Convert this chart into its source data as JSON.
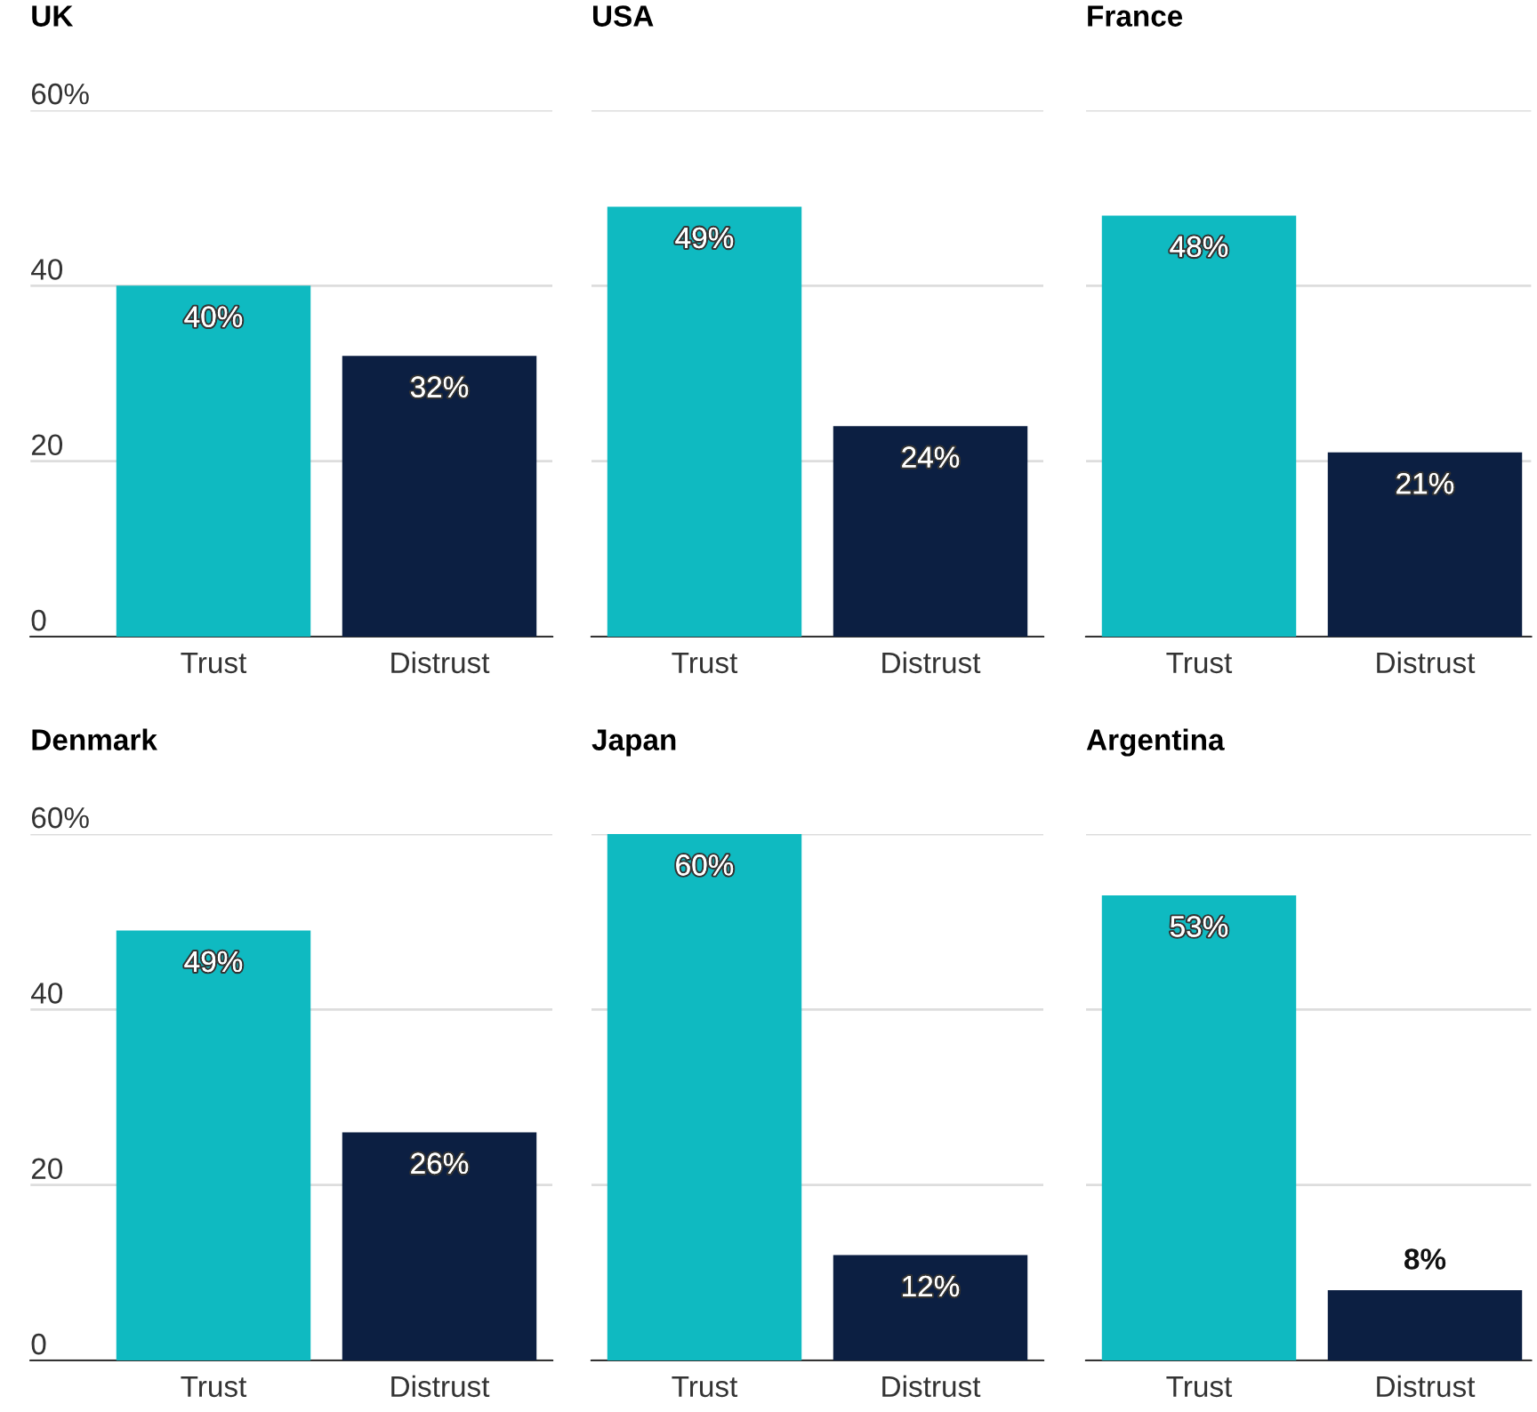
{
  "chart_data": [
    {
      "type": "bar",
      "title": "UK",
      "categories": [
        "Trust",
        "Distrust"
      ],
      "values": [
        40,
        32
      ],
      "colors": [
        "#0fbac1",
        "#0c1f42"
      ],
      "value_labels": [
        "40%",
        "32%"
      ],
      "ylim": [
        0,
        60
      ],
      "yticks": [
        0,
        20,
        40,
        {
          "value": 60,
          "label": "60%"
        }
      ],
      "grid": "y"
    },
    {
      "type": "bar",
      "title": "USA",
      "categories": [
        "Trust",
        "Distrust"
      ],
      "values": [
        49,
        24
      ],
      "colors": [
        "#0fbac1",
        "#0c1f42"
      ],
      "value_labels": [
        "49%",
        "24%"
      ],
      "ylim": [
        0,
        60
      ],
      "yticks": [
        0,
        20,
        40,
        60
      ],
      "grid": "y",
      "tick_labels": "x"
    },
    {
      "type": "bar",
      "title": "France",
      "categories": [
        "Trust",
        "Distrust"
      ],
      "values": [
        48,
        21
      ],
      "colors": [
        "#0fbac1",
        "#0c1f42"
      ],
      "value_labels": [
        "48%",
        "21%"
      ],
      "ylim": [
        0,
        60
      ],
      "yticks": [
        0,
        20,
        40,
        60
      ],
      "grid": "y",
      "tick_labels": "x"
    },
    {
      "type": "bar",
      "title": "Denmark",
      "categories": [
        "Trust",
        "Distrust"
      ],
      "values": [
        49,
        26
      ],
      "colors": [
        "#0fbac1",
        "#0c1f42"
      ],
      "value_labels": [
        "49%",
        "26%"
      ],
      "ylim": [
        0,
        60
      ],
      "yticks": [
        0,
        20,
        40,
        {
          "value": 60,
          "label": "60%"
        }
      ],
      "grid": "y"
    },
    {
      "type": "bar",
      "title": "Japan",
      "categories": [
        "Trust",
        "Distrust"
      ],
      "values": [
        60,
        12
      ],
      "colors": [
        "#0fbac1",
        "#0c1f42"
      ],
      "value_labels": [
        "60%",
        "12%"
      ],
      "ylim": [
        0,
        60
      ],
      "yticks": [
        0,
        20,
        40,
        60
      ],
      "grid": "y",
      "tick_labels": "x"
    },
    {
      "type": "bar",
      "title": "Argentina",
      "categories": [
        "Trust",
        "Distrust"
      ],
      "values": [
        53,
        8
      ],
      "colors": [
        "#0fbac1",
        "#0c1f42"
      ],
      "value_labels": [
        "53%",
        "8%"
      ],
      "ylim": [
        0,
        60
      ],
      "yticks": [
        0,
        20,
        40,
        60
      ],
      "grid": "y",
      "tick_labels": "x"
    }
  ]
}
